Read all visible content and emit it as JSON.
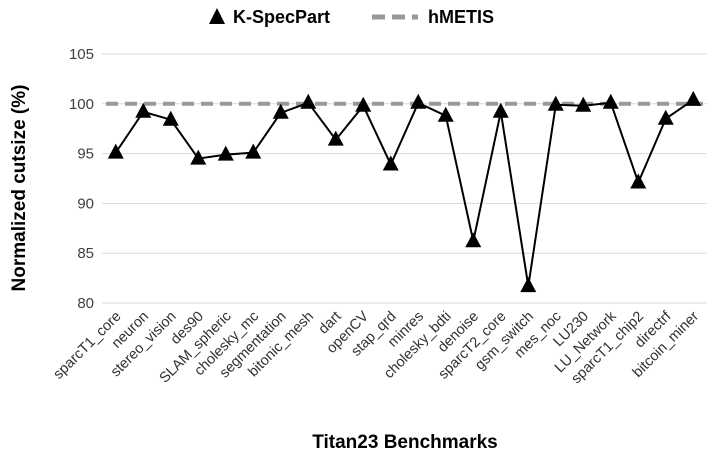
{
  "chart_data": {
    "type": "line",
    "title": "",
    "xlabel": "Titan23 Benchmarks",
    "ylabel": "Normalized cutsize (%)",
    "ylim": [
      80,
      105
    ],
    "yticks": [
      80,
      85,
      90,
      95,
      100,
      105
    ],
    "grid": "horizontal",
    "legend_position": "top-center",
    "categories": [
      "sparcT1_core",
      "neuron",
      "stereo_vision",
      "des90",
      "SLAM_spheric",
      "cholesky_mc",
      "segmentation",
      "bitonic_mesh",
      "dart",
      "openCV",
      "stap_qrd",
      "minres",
      "cholesky_bdti",
      "denoise",
      "sparcT2_core",
      "gsm_switch",
      "mes_noc",
      "LU230",
      "LU_Network",
      "sparcT1_chip2",
      "directrf",
      "bitcoin_miner"
    ],
    "series": [
      {
        "name": "K-SpecPart",
        "style": "solid-triangle",
        "color": "#000000",
        "values": [
          95.1,
          99.2,
          98.4,
          94.5,
          94.9,
          95.1,
          99.1,
          100.1,
          96.4,
          99.8,
          93.9,
          100.1,
          98.8,
          86.2,
          99.2,
          81.7,
          99.9,
          99.8,
          100.1,
          92.1,
          98.5,
          100.4
        ]
      },
      {
        "name": "hMETIS",
        "style": "dashed",
        "color": "#999999",
        "values": [
          100,
          100,
          100,
          100,
          100,
          100,
          100,
          100,
          100,
          100,
          100,
          100,
          100,
          100,
          100,
          100,
          100,
          100,
          100,
          100,
          100,
          100
        ]
      }
    ]
  }
}
